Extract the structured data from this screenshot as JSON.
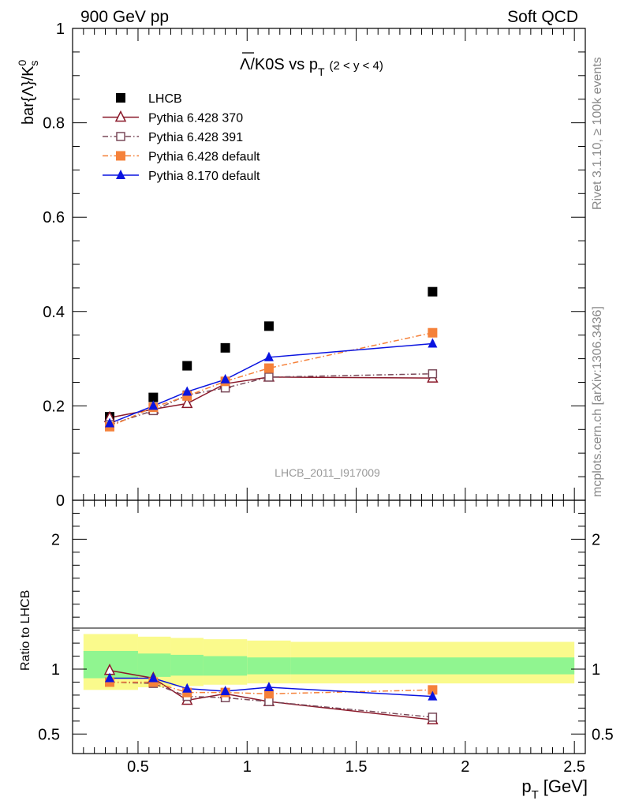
{
  "header": {
    "left": "900 GeV pp",
    "right": "Soft QCD"
  },
  "side_labels": {
    "rivet": "Rivet 3.1.10, ≥ 100k events",
    "mcplots": "mcplots.cern.ch [arXiv:1306.3436]"
  },
  "watermark": "LHCB_2011_I917009",
  "colors": {
    "data": "#000000",
    "pythia6_370": "#8b1a2b",
    "pythia6_391": "#7a4a5a",
    "pythia6_default": "#f5813a",
    "pythia8_default": "#0a14e0",
    "band_inner": "#90f590",
    "band_outer": "#fafa8c"
  },
  "chart_data": [
    {
      "type": "scatter",
      "title_main": "Λ/K0S vs p",
      "title_sub": "T",
      "title_range": "(2 < y < 4)",
      "ylabel": "bar{Λ}/K",
      "ylabel_sup": "0",
      "ylabel_sub": "s",
      "xlim": [
        0.2,
        2.55
      ],
      "ylim": [
        0,
        1.0
      ],
      "yticks": [
        0,
        0.2,
        0.4,
        0.6,
        0.8,
        1
      ],
      "ytick_labels": [
        "0",
        "0.2",
        "0.4",
        "0.6",
        "0.8",
        "1"
      ],
      "legend_position": "top-left",
      "x": [
        0.37,
        0.57,
        0.725,
        0.9,
        1.1,
        1.85
      ],
      "series": [
        {
          "name": "LHCB",
          "key": "data",
          "marker": "square-filled",
          "line": "none",
          "values": [
            0.177,
            0.218,
            0.285,
            0.323,
            0.369,
            0.442
          ]
        },
        {
          "name": "Pythia 6.428 370",
          "key": "pythia6_370",
          "marker": "triangle-open",
          "line": "solid",
          "values": [
            0.175,
            0.193,
            0.205,
            0.247,
            0.261,
            0.259
          ]
        },
        {
          "name": "Pythia 6.428 391",
          "key": "pythia6_391",
          "marker": "square-open",
          "line": "dashdot",
          "values": [
            0.16,
            0.19,
            0.223,
            0.238,
            0.261,
            0.268
          ]
        },
        {
          "name": "Pythia 6.428 default",
          "key": "pythia6_default",
          "marker": "square-filled",
          "line": "dashdot",
          "values": [
            0.156,
            0.197,
            0.221,
            0.252,
            0.28,
            0.355
          ]
        },
        {
          "name": "Pythia 8.170 default",
          "key": "pythia8_default",
          "marker": "triangle-filled",
          "line": "solid",
          "values": [
            0.163,
            0.2,
            0.23,
            0.256,
            0.303,
            0.332
          ]
        }
      ]
    },
    {
      "type": "scatter",
      "ylabel": "Ratio to LHCB",
      "xlabel": "p",
      "xlabel_sub": "T",
      "xlabel_unit": "[GeV]",
      "xlim": [
        0.2,
        2.55
      ],
      "ylim": [
        0.35,
        2.3
      ],
      "yticks": [
        0.5,
        1,
        2
      ],
      "ytick_labels": [
        "0.5",
        "1",
        "2"
      ],
      "xticks": [
        0.5,
        1,
        1.5,
        2,
        2.5
      ],
      "xtick_labels": [
        "0.5",
        "1",
        "1.5",
        "2",
        "2.5"
      ],
      "x": [
        0.37,
        0.57,
        0.725,
        0.9,
        1.1,
        1.85
      ],
      "band_bins": [
        0.25,
        0.5,
        0.65,
        0.8,
        1.0,
        1.2,
        2.5
      ],
      "band_inner": [
        [
          0.93,
          1.14
        ],
        [
          0.94,
          1.12
        ],
        [
          0.95,
          1.11
        ],
        [
          0.95,
          1.1
        ],
        [
          0.96,
          1.09
        ],
        [
          0.96,
          1.09
        ]
      ],
      "band_outer": [
        [
          0.84,
          1.27
        ],
        [
          0.86,
          1.25
        ],
        [
          0.87,
          1.24
        ],
        [
          0.88,
          1.23
        ],
        [
          0.89,
          1.22
        ],
        [
          0.89,
          1.21
        ]
      ],
      "series": [
        {
          "key": "pythia6_370",
          "marker": "triangle-open",
          "line": "solid",
          "values": [
            0.99,
            0.93,
            0.76,
            0.81,
            0.75,
            0.61
          ]
        },
        {
          "key": "pythia6_391",
          "marker": "square-open",
          "line": "dashdot",
          "values": [
            0.9,
            0.89,
            0.79,
            0.78,
            0.75,
            0.63
          ]
        },
        {
          "key": "pythia6_default",
          "marker": "square-filled",
          "line": "dashdot",
          "values": [
            0.9,
            0.9,
            0.82,
            0.82,
            0.81,
            0.84
          ]
        },
        {
          "key": "pythia8_default",
          "marker": "triangle-filled",
          "line": "solid",
          "values": [
            0.93,
            0.93,
            0.85,
            0.83,
            0.86,
            0.79
          ]
        }
      ]
    }
  ]
}
